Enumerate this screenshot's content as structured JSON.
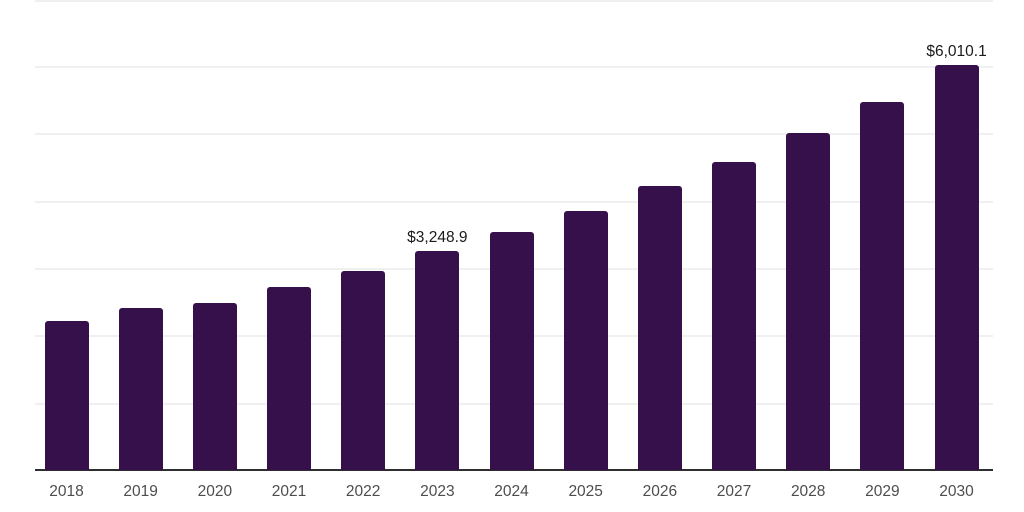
{
  "chart_data": {
    "type": "bar",
    "title": "",
    "xlabel": "",
    "ylabel": "",
    "categories": [
      "2018",
      "2019",
      "2020",
      "2021",
      "2022",
      "2023",
      "2024",
      "2025",
      "2026",
      "2027",
      "2028",
      "2029",
      "2030"
    ],
    "values": [
      2210,
      2410,
      2480,
      2720,
      2950,
      3248.9,
      3530,
      3850,
      4220,
      4570,
      5000,
      5470,
      6010.1
    ],
    "data_labels": [
      null,
      null,
      null,
      null,
      null,
      "$3,248.9",
      null,
      null,
      null,
      null,
      null,
      null,
      "$6,010.1"
    ],
    "ylim": [
      0,
      7000
    ],
    "gridline_step": 1000,
    "grid": "horizontal",
    "legend_position": "none",
    "colors": {
      "bar": "#36104B",
      "axis_line": "#2e2e2e",
      "gridline": "#f0f0f0",
      "tick_label": "#4d4d4d",
      "data_label": "#1a1a1a",
      "background": "#ffffff"
    }
  }
}
